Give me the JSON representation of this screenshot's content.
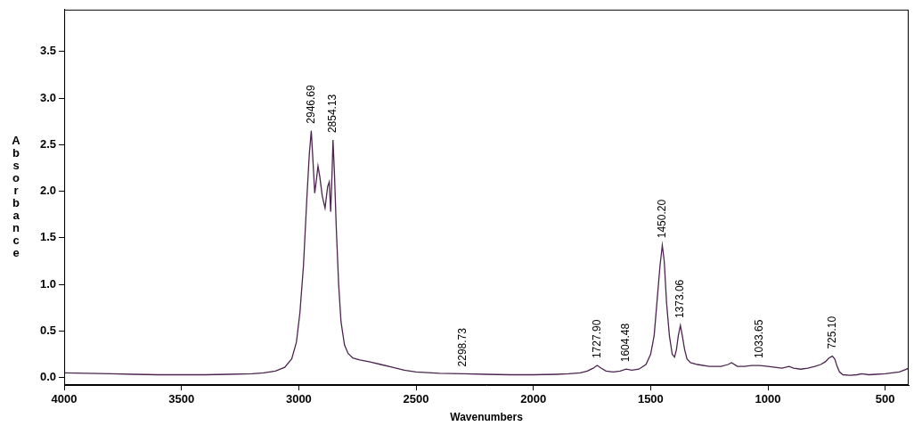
{
  "chart_data": {
    "type": "line",
    "x_label": "Wavenumbers",
    "y_label": "Absorbance",
    "color": "#4d2350",
    "grid": false,
    "xlim": [
      4000,
      400
    ],
    "xticks": [
      4000,
      3500,
      3000,
      2500,
      2000,
      1500,
      1000,
      500
    ],
    "ylim": [
      -0.08,
      3.95
    ],
    "yticks": [
      {
        "value": 0,
        "label": "0.0"
      },
      0.5,
      {
        "value": 1,
        "label": "1.0"
      },
      1.5,
      {
        "value": 2,
        "label": "2.0"
      },
      2.5,
      {
        "value": 3,
        "label": "3.0"
      },
      3.5
    ],
    "x": [
      4000,
      3900,
      3800,
      3700,
      3600,
      3500,
      3400,
      3300,
      3200,
      3150,
      3100,
      3060,
      3030,
      3010,
      2995,
      2980,
      2965,
      2955,
      2946.69,
      2940,
      2932,
      2926,
      2918,
      2910,
      2900,
      2888,
      2877,
      2870,
      2864,
      2858,
      2854.13,
      2848,
      2840,
      2830,
      2820,
      2805,
      2790,
      2770,
      2740,
      2700,
      2650,
      2600,
      2550,
      2500,
      2400,
      2298.73,
      2200,
      2100,
      2000,
      1900,
      1850,
      1800,
      1770,
      1745,
      1727.9,
      1710,
      1690,
      1660,
      1630,
      1604.48,
      1580,
      1550,
      1520,
      1500,
      1485,
      1470,
      1460,
      1450.2,
      1442,
      1432,
      1420,
      1408,
      1398,
      1390,
      1382,
      1373.06,
      1365,
      1355,
      1345,
      1330,
      1300,
      1250,
      1200,
      1170,
      1155,
      1130,
      1100,
      1070,
      1033.65,
      1000,
      970,
      940,
      910,
      890,
      860,
      830,
      800,
      775,
      755,
      740,
      725.1,
      715,
      705,
      695,
      680,
      650,
      620,
      600,
      570,
      540,
      500,
      470,
      440,
      420,
      400
    ],
    "values": [
      0.05,
      0.045,
      0.04,
      0.035,
      0.03,
      0.03,
      0.03,
      0.035,
      0.04,
      0.05,
      0.07,
      0.11,
      0.2,
      0.38,
      0.7,
      1.2,
      1.95,
      2.4,
      2.65,
      2.35,
      1.98,
      2.1,
      2.27,
      2.15,
      1.95,
      1.82,
      2.05,
      2.1,
      1.78,
      2.2,
      2.55,
      2.2,
      1.6,
      1.0,
      0.6,
      0.35,
      0.26,
      0.21,
      0.19,
      0.17,
      0.14,
      0.11,
      0.08,
      0.06,
      0.045,
      0.04,
      0.035,
      0.03,
      0.03,
      0.035,
      0.04,
      0.05,
      0.07,
      0.1,
      0.13,
      0.1,
      0.07,
      0.06,
      0.07,
      0.09,
      0.08,
      0.09,
      0.14,
      0.25,
      0.45,
      0.9,
      1.2,
      1.42,
      1.25,
      0.8,
      0.45,
      0.25,
      0.22,
      0.3,
      0.45,
      0.56,
      0.45,
      0.3,
      0.2,
      0.16,
      0.14,
      0.12,
      0.12,
      0.14,
      0.16,
      0.12,
      0.12,
      0.13,
      0.13,
      0.12,
      0.11,
      0.1,
      0.12,
      0.1,
      0.09,
      0.1,
      0.12,
      0.14,
      0.17,
      0.21,
      0.23,
      0.2,
      0.12,
      0.06,
      0.03,
      0.025,
      0.03,
      0.04,
      0.03,
      0.035,
      0.04,
      0.05,
      0.06,
      0.08,
      0.1
    ],
    "annotations": [
      {
        "x": 2946.69,
        "label": "2946.69"
      },
      {
        "x": 2854.13,
        "label": "2854.13"
      },
      {
        "x": 2298.73,
        "label": "2298.73"
      },
      {
        "x": 1727.9,
        "label": "1727.90"
      },
      {
        "x": 1604.48,
        "label": "1604.48"
      },
      {
        "x": 1450.2,
        "label": "1450.20"
      },
      {
        "x": 1373.06,
        "label": "1373.06"
      },
      {
        "x": 1033.65,
        "label": "1033.65"
      },
      {
        "x": 725.1,
        "label": "725.10"
      }
    ]
  }
}
